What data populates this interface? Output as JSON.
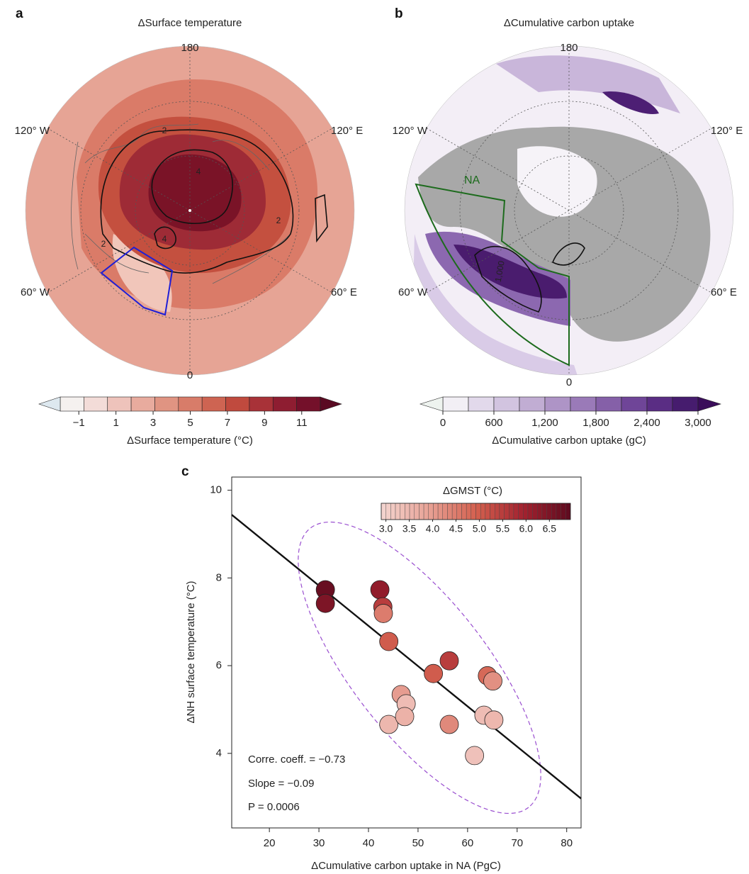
{
  "chart_data": [
    {
      "type": "map",
      "panel": "a",
      "title": "ΔSurface temperature",
      "longitude_labels": [
        "180",
        "120° W",
        "120° E",
        "60° W",
        "60° E",
        "0"
      ],
      "contour_labels": [
        "2",
        "4",
        "4",
        "2",
        "2"
      ],
      "colorbar": {
        "label": "ΔSurface temperature (°C)",
        "lim": [
          -2,
          12
        ],
        "ticks": [
          {
            "value": -1,
            "label": "−1"
          },
          1,
          3,
          5,
          7,
          9,
          11
        ],
        "colors": [
          "#f5f1ef",
          "#f3dcd8",
          "#eec3bb",
          "#e8ab9e",
          "#e09482",
          "#d87c69",
          "#ce6452",
          "#c04a3e",
          "#a83238",
          "#8e1d31",
          "#74102a"
        ],
        "under_color": "#dde8ef",
        "over_color": "#5a0a22"
      }
    },
    {
      "type": "map",
      "panel": "b",
      "title": "ΔCumulative carbon uptake",
      "longitude_labels": [
        "180",
        "120° W",
        "120° E",
        "60° W",
        "60° E",
        "0"
      ],
      "region_label": "NA",
      "contour_labels": [
        "1,000"
      ],
      "colorbar": {
        "label": "ΔCumulative carbon uptake (gC)",
        "lim": [
          0,
          3000
        ],
        "ticks": [
          0,
          600,
          {
            "value": 1200,
            "label": "1,200"
          },
          {
            "value": 1800,
            "label": "1,800"
          },
          {
            "value": 2400,
            "label": "2,400"
          },
          {
            "value": 3000,
            "label": "3,000"
          }
        ],
        "colors": [
          "#f2eff5",
          "#e2d9eb",
          "#d2c4e0",
          "#c1add3",
          "#ae94c6",
          "#9a7ab8",
          "#8560a8",
          "#6f4598",
          "#5a2d84",
          "#461c6e"
        ],
        "under_color": "#eef3ef",
        "over_color": "#3a0d5a"
      }
    },
    {
      "type": "scatter",
      "panel": "c",
      "xlabel": "ΔCumulative carbon uptake in NA (PgC)",
      "ylabel": "ΔNH surface temperature (°C)",
      "xlim": [
        12.4,
        82.9
      ],
      "ylim": [
        2.3,
        10.3
      ],
      "xticks": [
        20,
        30,
        40,
        50,
        60,
        70,
        80
      ],
      "yticks": [
        4,
        6,
        8,
        10
      ],
      "points": {
        "x": [
          31.3,
          31.3,
          42.3,
          42.9,
          43.0,
          44.1,
          53.1,
          56.3,
          64.0,
          65.1,
          46.6,
          47.6,
          44.1,
          47.3,
          56.3,
          63.3,
          65.3,
          61.4
        ],
        "values": [
          7.73,
          7.42,
          7.73,
          7.34,
          7.19,
          6.55,
          5.82,
          6.11,
          5.77,
          5.65,
          5.34,
          5.13,
          4.66,
          4.84,
          4.66,
          4.87,
          4.76,
          3.95
        ],
        "color_values": [
          6.8,
          6.5,
          6.2,
          5.5,
          4.5,
          5.0,
          5.0,
          5.5,
          4.8,
          4.2,
          4.0,
          3.4,
          3.5,
          3.6,
          4.3,
          3.4,
          3.5,
          3.3
        ]
      },
      "fit_line": {
        "x": [
          12.4,
          82.9
        ],
        "values": [
          9.44,
          2.97
        ],
        "color": "#111111"
      },
      "colorbar": {
        "label": "ΔGMST (°C)",
        "lim": [
          2.9,
          6.95
        ],
        "ticks": [
          {
            "value": 3,
            "label": "3.0"
          },
          3.5,
          {
            "value": 4,
            "label": "4.0"
          },
          4.5,
          {
            "value": 5,
            "label": "5.0"
          },
          5.5,
          {
            "value": 6,
            "label": "6.0"
          },
          6.5
        ],
        "colors": [
          "#f4d6d1",
          "#e8a296",
          "#d4614f",
          "#a3222f",
          "#5e0a1e"
        ]
      },
      "annotations": [
        "Corre. coeff. = −0.73",
        "Slope = −0.09",
        "P = 0.0006"
      ]
    }
  ]
}
